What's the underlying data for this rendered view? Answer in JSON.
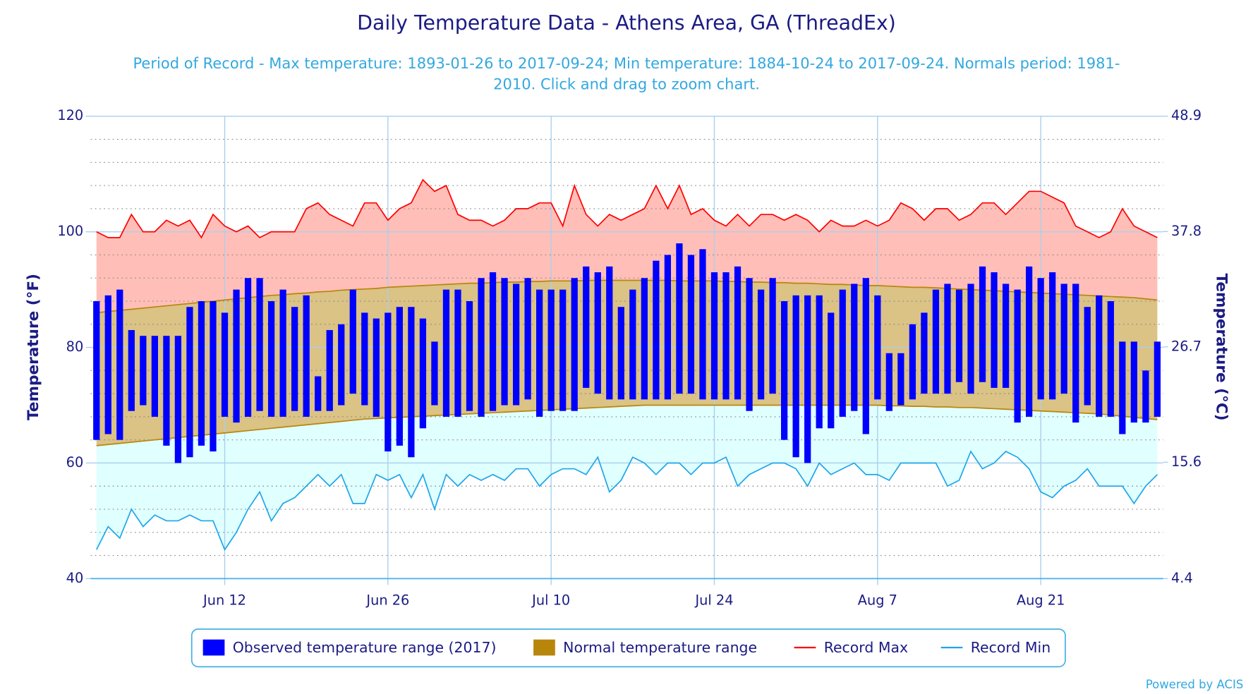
{
  "chart_data": {
    "type": "combo",
    "title": "Daily Temperature Data - Athens Area, GA (ThreadEx)",
    "subtitle": [
      "Period of Record - Max temperature: 1893-01-26 to 2017-09-24; Min temperature: 1884-10-24 to 2017-09-24. Normals period: 1981-",
      "2010. Click and drag to zoom chart."
    ],
    "y_label": "Temperature (°F)",
    "y2_label": "Temperature (°C)",
    "credits": "Powered by ACIS",
    "categories": [
      null,
      null,
      null,
      null,
      null,
      null,
      null,
      null,
      null,
      null,
      null,
      "Jun 12",
      null,
      null,
      null,
      null,
      null,
      null,
      null,
      null,
      null,
      null,
      null,
      null,
      null,
      "Jun 26",
      null,
      null,
      null,
      null,
      null,
      null,
      null,
      null,
      null,
      null,
      null,
      null,
      null,
      "Jul 10",
      null,
      null,
      null,
      null,
      null,
      null,
      null,
      null,
      null,
      null,
      null,
      null,
      null,
      "Jul 24",
      null,
      null,
      null,
      null,
      null,
      null,
      null,
      null,
      null,
      null,
      null,
      null,
      null,
      "Aug 7",
      null,
      null,
      null,
      null,
      null,
      null,
      null,
      null,
      null,
      null,
      null,
      null,
      null,
      "Aug 21",
      null,
      null,
      null,
      null,
      null,
      null,
      null,
      null,
      null,
      null
    ],
    "ylim": [
      40,
      120
    ],
    "yticks": [
      40,
      60,
      80,
      100,
      120
    ],
    "yminorticks": [
      44,
      48,
      52,
      56,
      64,
      68,
      72,
      76,
      84,
      88,
      92,
      96,
      104,
      108,
      112,
      116
    ],
    "y2lim": [
      4.4,
      48.9
    ],
    "y2ticks": [
      4.4,
      15.6,
      26.7,
      37.8,
      48.9
    ],
    "grid": true,
    "legend": "bottom",
    "series": [
      {
        "name": "Observed temperature range (2017)",
        "kind": "bar",
        "color": "#0000ff",
        "low": [
          64,
          65,
          64,
          69,
          70,
          68,
          63,
          60,
          61,
          63,
          62,
          68,
          67,
          68,
          69,
          68,
          68,
          69,
          68,
          69,
          69,
          70,
          72,
          70,
          68,
          62,
          63,
          61,
          66,
          70,
          68,
          68,
          69,
          68,
          69,
          70,
          70,
          71,
          68,
          69,
          69,
          69,
          73,
          72,
          71,
          71,
          71,
          71,
          71,
          71,
          72,
          72,
          71,
          71,
          71,
          71,
          69,
          71,
          72,
          64,
          61,
          60,
          66,
          66,
          68,
          69,
          65,
          71,
          69,
          70,
          71,
          72,
          72,
          72,
          74,
          72,
          74,
          73,
          73,
          67,
          68,
          71,
          71,
          72,
          67,
          70,
          68,
          68,
          65,
          67,
          67,
          68
        ],
        "high": [
          88,
          89,
          90,
          83,
          82,
          82,
          82,
          82,
          87,
          88,
          88,
          86,
          90,
          92,
          92,
          88,
          90,
          87,
          89,
          75,
          83,
          84,
          90,
          86,
          85,
          86,
          87,
          87,
          85,
          81,
          90,
          90,
          88,
          92,
          93,
          92,
          91,
          92,
          90,
          90,
          90,
          92,
          94,
          93,
          94,
          87,
          90,
          92,
          95,
          96,
          98,
          96,
          97,
          93,
          93,
          94,
          92,
          90,
          92,
          88,
          89,
          89,
          89,
          86,
          90,
          91,
          92,
          89,
          79,
          79,
          84,
          86,
          90,
          91,
          90,
          91,
          94,
          93,
          91,
          90,
          94,
          92,
          93,
          91,
          91,
          87,
          89,
          88,
          81,
          81,
          76,
          81
        ]
      },
      {
        "name": "Normal temperature range",
        "kind": "band",
        "color": "#b8860b",
        "low": [
          63.0,
          63.2,
          63.4,
          63.6,
          63.8,
          64.0,
          64.2,
          64.4,
          64.6,
          64.8,
          65.0,
          65.2,
          65.4,
          65.6,
          65.8,
          66.0,
          66.2,
          66.4,
          66.6,
          66.8,
          67.0,
          67.2,
          67.4,
          67.6,
          67.7,
          67.8,
          67.9,
          68.0,
          68.1,
          68.2,
          68.3,
          68.4,
          68.5,
          68.6,
          68.7,
          68.8,
          68.9,
          69.0,
          69.1,
          69.2,
          69.3,
          69.4,
          69.5,
          69.6,
          69.7,
          69.8,
          69.9,
          70.0,
          70.0,
          70.0,
          70.0,
          70.0,
          70.0,
          70.0,
          70.0,
          70.0,
          70.0,
          70.0,
          70.0,
          70.0,
          70.0,
          70.0,
          70.0,
          70.0,
          70.0,
          70.0,
          70.0,
          70.0,
          69.9,
          69.9,
          69.8,
          69.8,
          69.7,
          69.7,
          69.6,
          69.6,
          69.5,
          69.4,
          69.3,
          69.2,
          69.1,
          69.0,
          68.9,
          68.8,
          68.7,
          68.6,
          68.5,
          68.3,
          68.1,
          67.9,
          67.7,
          67.5
        ],
        "high": [
          86.0,
          86.2,
          86.4,
          86.6,
          86.8,
          87.0,
          87.2,
          87.4,
          87.6,
          87.8,
          88.0,
          88.2,
          88.4,
          88.6,
          88.8,
          89.0,
          89.1,
          89.3,
          89.4,
          89.6,
          89.7,
          89.9,
          90.0,
          90.1,
          90.2,
          90.4,
          90.5,
          90.6,
          90.7,
          90.8,
          90.9,
          91.0,
          91.1,
          91.1,
          91.2,
          91.3,
          91.3,
          91.4,
          91.4,
          91.5,
          91.5,
          91.5,
          91.6,
          91.6,
          91.6,
          91.6,
          91.6,
          91.6,
          91.6,
          91.6,
          91.5,
          91.5,
          91.5,
          91.5,
          91.4,
          91.4,
          91.3,
          91.3,
          91.2,
          91.2,
          91.1,
          91.1,
          91.0,
          90.9,
          90.9,
          90.8,
          90.7,
          90.7,
          90.6,
          90.5,
          90.4,
          90.4,
          90.3,
          90.2,
          90.1,
          90.0,
          89.9,
          89.8,
          89.7,
          89.6,
          89.5,
          89.4,
          89.3,
          89.2,
          89.1,
          89.0,
          88.9,
          88.8,
          88.7,
          88.6,
          88.4,
          88.2
        ]
      },
      {
        "name": "Record Max",
        "kind": "line",
        "color": "#ff0000",
        "fill": "#ffbfb8",
        "values": [
          100,
          99,
          99,
          103,
          100,
          100,
          102,
          101,
          102,
          99,
          103,
          101,
          100,
          101,
          99,
          100,
          100,
          100,
          104,
          105,
          103,
          102,
          101,
          105,
          105,
          102,
          104,
          105,
          109,
          107,
          108,
          103,
          102,
          102,
          101,
          102,
          104,
          104,
          105,
          105,
          101,
          108,
          103,
          101,
          103,
          102,
          103,
          104,
          108,
          104,
          108,
          103,
          104,
          102,
          101,
          103,
          101,
          103,
          103,
          102,
          103,
          102,
          100,
          102,
          101,
          101,
          102,
          101,
          102,
          105,
          104,
          102,
          104,
          104,
          102,
          103,
          105,
          105,
          103,
          105,
          107,
          107,
          106,
          105,
          101,
          100,
          99,
          100,
          104,
          101,
          100,
          99
        ]
      },
      {
        "name": "Record Min",
        "kind": "line",
        "color": "#1fa6ea",
        "fill": "#e0ffff",
        "values": [
          45,
          49,
          47,
          52,
          49,
          51,
          50,
          50,
          51,
          50,
          50,
          45,
          48,
          52,
          55,
          50,
          53,
          54,
          56,
          58,
          56,
          58,
          53,
          53,
          58,
          57,
          58,
          54,
          58,
          52,
          58,
          56,
          58,
          57,
          58,
          57,
          59,
          59,
          56,
          58,
          59,
          59,
          58,
          61,
          55,
          57,
          61,
          60,
          58,
          60,
          60,
          58,
          60,
          60,
          61,
          56,
          58,
          59,
          60,
          60,
          59,
          56,
          60,
          58,
          59,
          60,
          58,
          58,
          57,
          60,
          60,
          60,
          60,
          56,
          57,
          62,
          59,
          60,
          62,
          61,
          59,
          55,
          54,
          56,
          57,
          59,
          56,
          56,
          56,
          53,
          56,
          58
        ]
      }
    ]
  }
}
